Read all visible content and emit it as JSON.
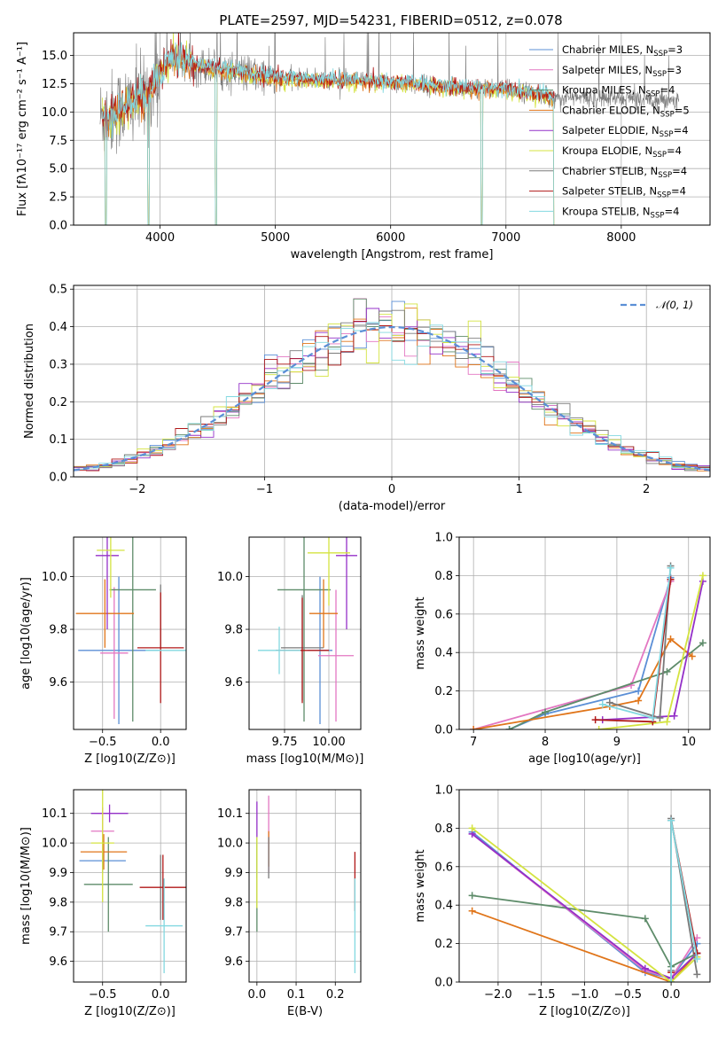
{
  "figure": {
    "title": "PLATE=2597, MJD=54231, FIBERID=0512, z=0.078"
  },
  "palette": {
    "chabrier_miles": "#5b8fd6",
    "salpeter_miles": "#e377c2",
    "kroupa_miles": "#5e8c6a",
    "chabrier_elodie": "#e0751a",
    "salpeter_elodie": "#9430c8",
    "kroupa_elodie": "#d4e340",
    "chabrier_stelib": "#7a7a7a",
    "salpeter_stelib": "#b01818",
    "kroupa_stelib": "#82d8e0",
    "gauss": "#5b8fd6"
  },
  "chart_data": [
    {
      "id": "spectrum",
      "type": "line",
      "title": "PLATE=2597, MJD=54231, FIBERID=0512, z=0.078",
      "xlabel": "wavelength [Angstrom, rest frame]",
      "ylabel": "Flux [fλ10⁻¹⁷ erg cm⁻² s⁻¹ A⁻¹]",
      "xlim": [
        3250,
        8770
      ],
      "ylim": [
        0,
        17
      ],
      "xticks": [
        4000,
        5000,
        6000,
        7000,
        8000
      ],
      "yticks": [
        0.0,
        2.5,
        5.0,
        7.5,
        10.0,
        12.5,
        15.0
      ],
      "ytick_labels": [
        "0.0",
        "2.5",
        "5.0",
        "7.5",
        "10.0",
        "12.5",
        "15.0"
      ],
      "legend_position": "top-right",
      "legend": [
        {
          "label": "Chabrier MILES, N",
          "sub": "SSP",
          "tail": "=3",
          "color": "chabrier_miles"
        },
        {
          "label": "Salpeter MILES, N",
          "sub": "SSP",
          "tail": "=3",
          "color": "salpeter_miles"
        },
        {
          "label": "Kroupa MILES, N",
          "sub": "SSP",
          "tail": "=4",
          "color": "kroupa_miles"
        },
        {
          "label": "Chabrier ELODIE, N",
          "sub": "SSP",
          "tail": "=5",
          "color": "chabrier_elodie"
        },
        {
          "label": "Salpeter ELODIE, N",
          "sub": "SSP",
          "tail": "=4",
          "color": "salpeter_elodie"
        },
        {
          "label": "Kroupa ELODIE, N",
          "sub": "SSP",
          "tail": "=4",
          "color": "kroupa_elodie"
        },
        {
          "label": "Chabrier STELIB, N",
          "sub": "SSP",
          "tail": "=4",
          "color": "chabrier_stelib"
        },
        {
          "label": "Salpeter STELIB, N",
          "sub": "SSP",
          "tail": "=4",
          "color": "salpeter_stelib"
        },
        {
          "label": "Kroupa STELIB, N",
          "sub": "SSP",
          "tail": "=4",
          "color": "kroupa_stelib"
        }
      ],
      "continuum": [
        [
          3500,
          9.5
        ],
        [
          3700,
          10.5
        ],
        [
          3900,
          11.5
        ],
        [
          4000,
          13.5
        ],
        [
          4100,
          14.8
        ],
        [
          4300,
          14.2
        ],
        [
          4500,
          13.8
        ],
        [
          5000,
          13.0
        ],
        [
          5500,
          12.8
        ],
        [
          6000,
          12.6
        ],
        [
          6500,
          12.2
        ],
        [
          7000,
          12.0
        ],
        [
          7300,
          11.6
        ],
        [
          7420,
          11.2
        ]
      ],
      "dips": [
        [
          3530,
          0
        ],
        [
          3900,
          0
        ],
        [
          4485,
          0
        ],
        [
          6790,
          0
        ],
        [
          7420,
          0
        ]
      ],
      "data_range": [
        3480,
        8500
      ]
    },
    {
      "id": "residuals",
      "type": "histogram",
      "xlabel": "(data-model)/error",
      "ylabel": "Normed distribution",
      "xlim": [
        -2.5,
        2.5
      ],
      "ylim": [
        0,
        0.51
      ],
      "xticks": [
        -2,
        -1,
        0,
        1,
        2
      ],
      "xtick_labels": [
        "−2",
        "−1",
        "0",
        "1",
        "2"
      ],
      "yticks": [
        0.0,
        0.1,
        0.2,
        0.3,
        0.4,
        0.5
      ],
      "ytick_labels": [
        "0.0",
        "0.1",
        "0.2",
        "0.3",
        "0.4",
        "0.5"
      ],
      "legend": "𝒩(0, 1)",
      "bins_from": -2.5,
      "bin_width": 0.1,
      "gauss_curve": "N(0,1)"
    },
    {
      "id": "age-vs-Z",
      "type": "errorbar",
      "xlabel": "Z [log10(Z/Z⊙)]",
      "ylabel": "age  [log10(age/yr)]",
      "xlim": [
        -0.75,
        0.22
      ],
      "ylim": [
        9.42,
        10.15
      ],
      "xticks": [
        -0.5,
        0.0
      ],
      "xtick_labels": [
        "−0.5",
        "0.0"
      ],
      "yticks": [
        9.6,
        9.8,
        10.0
      ],
      "ytick_labels": [
        "9.6",
        "9.8",
        "10.0"
      ],
      "points": [
        {
          "color": "chabrier_miles",
          "x": -0.36,
          "xe": 0.35,
          "y": 9.72,
          "ye": 0.28
        },
        {
          "color": "salpeter_miles",
          "x": -0.4,
          "xe": 0.12,
          "y": 9.71,
          "ye": 0.25
        },
        {
          "color": "kroupa_miles",
          "x": -0.24,
          "xe": 0.2,
          "y": 9.95,
          "ye": 0.5
        },
        {
          "color": "chabrier_elodie",
          "x": -0.48,
          "xe": 0.25,
          "y": 9.86,
          "ye": 0.13
        },
        {
          "color": "salpeter_elodie",
          "x": -0.46,
          "xe": 0.1,
          "y": 10.08,
          "ye": 0.28
        },
        {
          "color": "kroupa_elodie",
          "x": -0.43,
          "xe": 0.12,
          "y": 10.1,
          "ye": 0.18
        },
        {
          "color": "chabrier_stelib",
          "x": 0.0,
          "xe": 0.0,
          "y": 9.85,
          "ye": 0.12
        },
        {
          "color": "salpeter_stelib",
          "x": 0.0,
          "xe": 0.2,
          "y": 9.73,
          "ye": 0.21
        },
        {
          "color": "kroupa_stelib",
          "x": 0.05,
          "xe": 0.18,
          "y": 9.72,
          "ye": 0.0
        }
      ]
    },
    {
      "id": "age-vs-mass",
      "type": "errorbar",
      "xlabel": "mass [log10(M/M⊙)]",
      "ylabel": "",
      "xlim": [
        9.55,
        10.18
      ],
      "ylim": [
        9.42,
        10.15
      ],
      "xticks": [
        9.75,
        10.0
      ],
      "xtick_labels": [
        "9.75",
        "10.00"
      ],
      "yticks": [
        9.6,
        9.8,
        10.0
      ],
      "ytick_labels": [
        "9.6",
        "9.8",
        "10.0"
      ],
      "points": [
        {
          "color": "chabrier_miles",
          "x": 9.95,
          "xe": 0.07,
          "y": 9.72,
          "ye": 0.28
        },
        {
          "color": "salpeter_miles",
          "x": 10.04,
          "xe": 0.1,
          "y": 9.7,
          "ye": 0.25
        },
        {
          "color": "kroupa_miles",
          "x": 9.86,
          "xe": 0.15,
          "y": 9.95,
          "ye": 0.5
        },
        {
          "color": "chabrier_elodie",
          "x": 9.97,
          "xe": 0.08,
          "y": 9.86,
          "ye": 0.13
        },
        {
          "color": "salpeter_elodie",
          "x": 10.1,
          "xe": 0.06,
          "y": 10.08,
          "ye": 0.28
        },
        {
          "color": "kroupa_elodie",
          "x": 10.0,
          "xe": 0.12,
          "y": 10.09,
          "ye": 0.2
        },
        {
          "color": "chabrier_stelib",
          "x": 9.85,
          "xe": 0.12,
          "y": 9.73,
          "ye": 0.2
        },
        {
          "color": "salpeter_stelib",
          "x": 9.85,
          "xe": 0.15,
          "y": 9.72,
          "ye": 0.2
        },
        {
          "color": "kroupa_stelib",
          "x": 9.72,
          "xe": 0.12,
          "y": 9.72,
          "ye": 0.09
        }
      ]
    },
    {
      "id": "massweight-vs-age",
      "type": "line",
      "xlabel": "age  [log10(age/yr)]",
      "ylabel": "mass weight",
      "xlim": [
        6.8,
        10.3
      ],
      "ylim": [
        0,
        1.0
      ],
      "xticks": [
        7,
        8,
        9,
        10
      ],
      "xtick_labels": [
        "7",
        "8",
        "9",
        "10"
      ],
      "yticks": [
        0.0,
        0.2,
        0.4,
        0.6,
        0.8,
        1.0
      ],
      "ytick_labels": [
        "0.0",
        "0.2",
        "0.4",
        "0.6",
        "0.8",
        "1.0"
      ],
      "series": [
        {
          "color": "chabrier_miles",
          "x": [
            7.5,
            8.0,
            9.3,
            9.75
          ],
          "y": [
            0.0,
            0.08,
            0.2,
            0.79
          ]
        },
        {
          "color": "salpeter_miles",
          "x": [
            7.0,
            9.2,
            9.75
          ],
          "y": [
            0.0,
            0.23,
            0.77
          ]
        },
        {
          "color": "kroupa_miles",
          "x": [
            7.5,
            8.0,
            9.7,
            10.2
          ],
          "y": [
            0.0,
            0.09,
            0.3,
            0.45
          ]
        },
        {
          "color": "chabrier_elodie",
          "x": [
            7.0,
            8.9,
            9.3,
            9.75,
            10.05
          ],
          "y": [
            0.0,
            0.12,
            0.15,
            0.47,
            0.38
          ]
        },
        {
          "color": "salpeter_elodie",
          "x": [
            8.8,
            9.8,
            10.2
          ],
          "y": [
            0.05,
            0.07,
            0.77
          ]
        },
        {
          "color": "kroupa_elodie",
          "x": [
            8.75,
            9.7,
            10.2
          ],
          "y": [
            0.0,
            0.04,
            0.8
          ]
        },
        {
          "color": "chabrier_stelib",
          "x": [
            8.9,
            9.6,
            9.75
          ],
          "y": [
            0.14,
            0.06,
            0.85
          ]
        },
        {
          "color": "salpeter_stelib",
          "x": [
            8.7,
            9.5,
            9.75
          ],
          "y": [
            0.05,
            0.04,
            0.78
          ]
        },
        {
          "color": "kroupa_stelib",
          "x": [
            8.8,
            9.5,
            9.75
          ],
          "y": [
            0.13,
            0.06,
            0.84
          ]
        }
      ]
    },
    {
      "id": "mass-vs-Z",
      "type": "errorbar",
      "xlabel": "Z [log10(Z/Z⊙)]",
      "ylabel": "mass [log10(M/M⊙)]",
      "xlim": [
        -0.75,
        0.22
      ],
      "ylim": [
        9.53,
        10.18
      ],
      "xticks": [
        -0.5,
        0.0
      ],
      "xtick_labels": [
        "−0.5",
        "0.0"
      ],
      "yticks": [
        9.6,
        9.7,
        9.8,
        9.9,
        10.0,
        10.1
      ],
      "ytick_labels": [
        "9.6",
        "9.7",
        "9.8",
        "9.9",
        "10.0",
        "10.1"
      ],
      "points": [
        {
          "color": "chabrier_miles",
          "x": -0.5,
          "xe": 0.2,
          "y": 9.94,
          "ye": 0.04
        },
        {
          "color": "salpeter_miles",
          "x": -0.5,
          "xe": 0.1,
          "y": 10.04,
          "ye": 0.08
        },
        {
          "color": "kroupa_miles",
          "x": -0.45,
          "xe": 0.21,
          "y": 9.86,
          "ye": 0.16
        },
        {
          "color": "chabrier_elodie",
          "x": -0.49,
          "xe": 0.2,
          "y": 9.97,
          "ye": 0.06
        },
        {
          "color": "salpeter_elodie",
          "x": -0.44,
          "xe": 0.16,
          "y": 10.1,
          "ye": 0.03
        },
        {
          "color": "kroupa_elodie",
          "x": -0.5,
          "xe": 0.1,
          "y": 10.0,
          "ye": 0.2
        },
        {
          "color": "chabrier_stelib",
          "x": 0.0,
          "xe": 0.0,
          "y": 9.85,
          "ye": 0.11
        },
        {
          "color": "salpeter_stelib",
          "x": 0.02,
          "xe": 0.2,
          "y": 9.85,
          "ye": 0.11
        },
        {
          "color": "kroupa_stelib",
          "x": 0.03,
          "xe": 0.16,
          "y": 9.72,
          "ye": 0.16
        }
      ]
    },
    {
      "id": "mass-vs-EBV",
      "type": "errorbar",
      "xlabel": "E(B-V)",
      "ylabel": "",
      "xlim": [
        -0.02,
        0.265
      ],
      "ylim": [
        9.53,
        10.18
      ],
      "xticks": [
        0.0,
        0.1,
        0.2
      ],
      "xtick_labels": [
        "0.0",
        "0.1",
        "0.2"
      ],
      "yticks": [
        9.6,
        9.7,
        9.8,
        9.9,
        10.0,
        10.1
      ],
      "ytick_labels": [
        "9.6",
        "9.7",
        "9.8",
        "9.9",
        "10.0",
        "10.1"
      ],
      "points": [
        {
          "color": "chabrier_miles",
          "x": 0.0,
          "xe": 0.0,
          "y": 9.94,
          "ye": 0.06
        },
        {
          "color": "salpeter_miles",
          "x": 0.03,
          "xe": 0.0,
          "y": 10.03,
          "ye": 0.13
        },
        {
          "color": "kroupa_miles",
          "x": 0.0,
          "xe": 0.0,
          "y": 9.86,
          "ye": 0.16
        },
        {
          "color": "chabrier_elodie",
          "x": 0.03,
          "xe": 0.0,
          "y": 9.98,
          "ye": 0.06
        },
        {
          "color": "salpeter_elodie",
          "x": 0.0,
          "xe": 0.0,
          "y": 10.08,
          "ye": 0.06
        },
        {
          "color": "kroupa_elodie",
          "x": 0.0,
          "xe": 0.0,
          "y": 9.9,
          "ye": 0.12
        },
        {
          "color": "chabrier_stelib",
          "x": 0.03,
          "xe": 0.0,
          "y": 9.95,
          "ye": 0.07
        },
        {
          "color": "salpeter_stelib",
          "x": 0.25,
          "xe": 0.0,
          "y": 9.87,
          "ye": 0.1
        },
        {
          "color": "kroupa_stelib",
          "x": 0.25,
          "xe": 0.0,
          "y": 9.72,
          "ye": 0.16
        }
      ]
    },
    {
      "id": "massweight-vs-Z",
      "type": "line",
      "xlabel": "Z [log10(Z/Z⊙)]",
      "ylabel": "mass weight",
      "xlim": [
        -2.45,
        0.45
      ],
      "ylim": [
        0,
        1.0
      ],
      "xticks": [
        -2.0,
        -1.5,
        -1.0,
        -0.5,
        0.0
      ],
      "xtick_labels": [
        "−2.0",
        "−1.5",
        "−1.0",
        "−0.5",
        "0.0"
      ],
      "yticks": [
        0.0,
        0.2,
        0.4,
        0.6,
        0.8,
        1.0
      ],
      "ytick_labels": [
        "0.0",
        "0.2",
        "0.4",
        "0.6",
        "0.8",
        "1.0"
      ],
      "series": [
        {
          "color": "chabrier_miles",
          "x": [
            -2.3,
            -0.3,
            0.0,
            0.3
          ],
          "y": [
            0.78,
            0.05,
            0.02,
            0.2
          ]
        },
        {
          "color": "salpeter_miles",
          "x": [
            -2.3,
            -0.3,
            0.0,
            0.3
          ],
          "y": [
            0.77,
            0.06,
            0.02,
            0.23
          ]
        },
        {
          "color": "kroupa_miles",
          "x": [
            -2.3,
            -0.3,
            0.0,
            0.3
          ],
          "y": [
            0.45,
            0.33,
            0.08,
            0.15
          ]
        },
        {
          "color": "chabrier_elodie",
          "x": [
            -2.3,
            0.0,
            0.3
          ],
          "y": [
            0.37,
            0.0,
            0.15
          ]
        },
        {
          "color": "salpeter_elodie",
          "x": [
            -2.3,
            -0.3,
            0.0,
            0.3
          ],
          "y": [
            0.77,
            0.07,
            0.02,
            0.15
          ]
        },
        {
          "color": "kroupa_elodie",
          "x": [
            -2.3,
            0.0,
            0.3
          ],
          "y": [
            0.8,
            0.0,
            0.13
          ]
        },
        {
          "color": "chabrier_stelib",
          "x": [
            0.0,
            0.0,
            0.3
          ],
          "y": [
            0.06,
            0.85,
            0.04
          ]
        },
        {
          "color": "salpeter_stelib",
          "x": [
            0.0,
            0.0,
            0.3
          ],
          "y": [
            0.05,
            0.84,
            0.15
          ]
        },
        {
          "color": "kroupa_stelib",
          "x": [
            0.0,
            0.0,
            0.3
          ],
          "y": [
            0.0,
            0.84,
            0.12
          ]
        }
      ]
    }
  ]
}
